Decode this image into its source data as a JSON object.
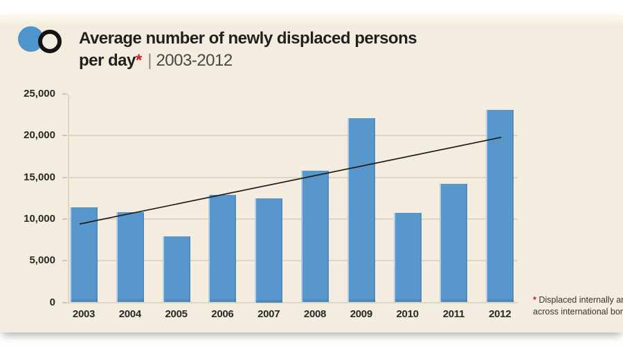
{
  "colors": {
    "page_bg": "#ffffff",
    "panel_bg": "#f2edde",
    "bar": "#5797cb",
    "grid": "#ded6c1",
    "grid_dark": "#cfc6ab",
    "axis_text": "#2b2724",
    "title_text": "#231f20",
    "period_text": "#4a4643",
    "accent_red": "#cf2027",
    "trend": "#1f1c18",
    "logo_blue": "#4f94cd",
    "logo_ring": "#161311",
    "footnote_text": "#3a342c"
  },
  "header": {
    "title_line1": "Average number of newly displaced persons",
    "title_line2_bold": "per day",
    "asterisk": "*",
    "separator": "|",
    "period": "2003-2012"
  },
  "footnote": {
    "asterisk": "*",
    "line1": "Displaced internally and",
    "line2": "across international borders"
  },
  "chart_data": {
    "type": "bar",
    "title": "Average number of newly displaced persons per day | 2003-2012",
    "categories": [
      "2003",
      "2004",
      "2005",
      "2006",
      "2007",
      "2008",
      "2009",
      "2010",
      "2011",
      "2012"
    ],
    "values": [
      11400,
      10800,
      7900,
      12900,
      12500,
      15800,
      22100,
      10700,
      14200,
      23100
    ],
    "xlabel": "",
    "ylabel": "",
    "ylim": [
      0,
      25000
    ],
    "ytick_values": [
      25000,
      20000,
      15000,
      10000,
      5000,
      0
    ],
    "ytick_labels": [
      "25,000",
      "20,000",
      "15,000",
      "10,000",
      "5,000",
      "0"
    ],
    "grid": true,
    "legend": false,
    "trendline": {
      "start_category": "2003",
      "end_category": "2012",
      "start_value": 9400,
      "end_value": 19800
    }
  }
}
